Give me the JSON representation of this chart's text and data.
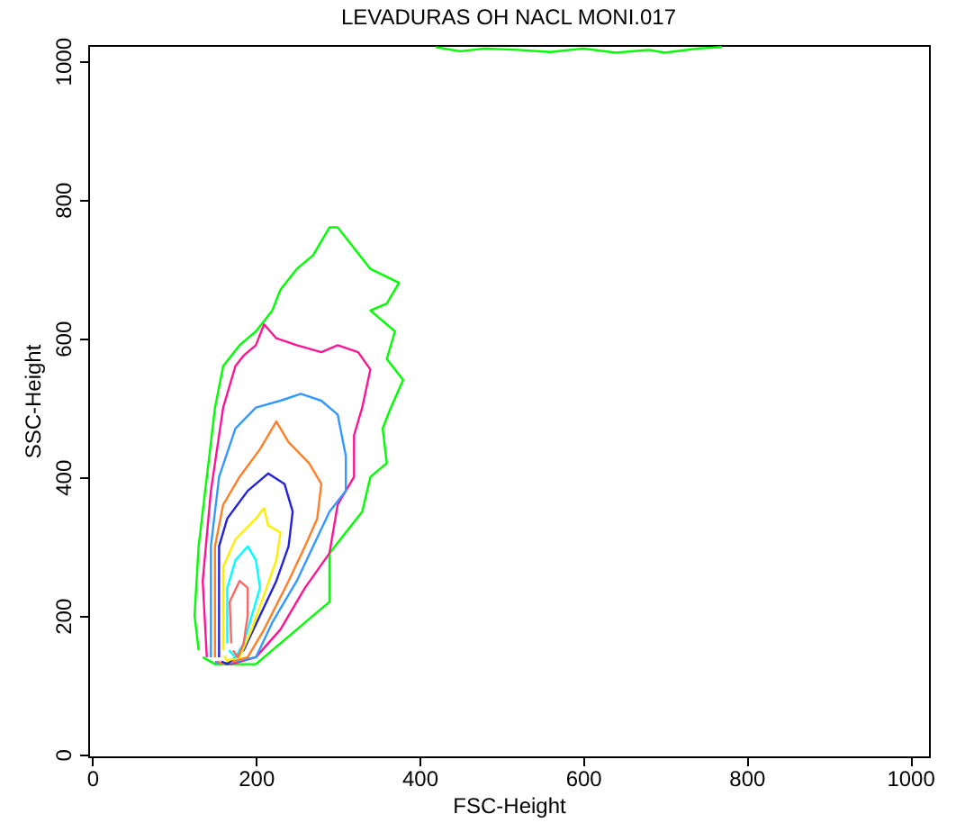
{
  "chart_data": {
    "type": "line",
    "title": "LEVADURAS OH NACL MONI.017",
    "xlabel": "FSC-Height",
    "ylabel": "SSC-Height",
    "xlim": [
      -5,
      1023
    ],
    "ylim": [
      -3,
      1023
    ],
    "xticks": [
      0,
      200,
      400,
      600,
      800,
      1000
    ],
    "yticks": [
      0,
      200,
      400,
      600,
      800,
      1000
    ],
    "grid": false,
    "legend": false,
    "marker": "none",
    "line_style": "solid",
    "series": [
      {
        "color": "#00ff00",
        "x": [
          130,
          125,
          130,
          140,
          150,
          160,
          180,
          200,
          220,
          230,
          250,
          270,
          290,
          300,
          340,
          375,
          360,
          340,
          370,
          360,
          380,
          365,
          355,
          360,
          340,
          330,
          310,
          290,
          290,
          270,
          250,
          220,
          200,
          150,
          135
        ],
        "values": [
          150,
          200,
          300,
          400,
          500,
          560,
          590,
          610,
          640,
          670,
          700,
          720,
          760,
          760,
          700,
          680,
          650,
          640,
          610,
          570,
          540,
          500,
          470,
          420,
          400,
          350,
          320,
          290,
          220,
          200,
          180,
          150,
          130,
          130,
          140
        ]
      },
      {
        "color": "#00ff00",
        "x": [
          420,
          450,
          480,
          520,
          560,
          600,
          640,
          680,
          700,
          740,
          770
        ],
        "values": [
          1020,
          1014,
          1018,
          1016,
          1013,
          1018,
          1012,
          1016,
          1012,
          1018,
          1020
        ]
      },
      {
        "color": "#ff1493",
        "x": [
          140,
          135,
          145,
          160,
          175,
          185,
          200,
          210,
          225,
          250,
          280,
          300,
          325,
          340,
          330,
          320,
          320,
          300,
          290,
          260,
          230,
          200,
          170,
          150
        ],
        "values": [
          140,
          250,
          380,
          500,
          560,
          575,
          590,
          620,
          600,
          590,
          580,
          590,
          580,
          555,
          500,
          460,
          400,
          360,
          290,
          240,
          180,
          140,
          130,
          133
        ]
      },
      {
        "color": "#3399ff",
        "x": [
          145,
          145,
          155,
          175,
          200,
          230,
          255,
          280,
          300,
          310,
          310,
          290,
          270,
          250,
          220,
          200,
          160,
          150
        ],
        "values": [
          140,
          300,
          400,
          470,
          500,
          510,
          520,
          510,
          490,
          430,
          380,
          350,
          300,
          250,
          190,
          140,
          130,
          133
        ]
      },
      {
        "color": "#ff7f27",
        "x": [
          150,
          150,
          160,
          180,
          205,
          225,
          240,
          265,
          280,
          275,
          260,
          240,
          210,
          190,
          160,
          153
        ],
        "values": [
          140,
          300,
          360,
          400,
          440,
          480,
          450,
          420,
          390,
          340,
          300,
          250,
          180,
          140,
          130,
          134
        ]
      },
      {
        "color": "#2222dd",
        "x": [
          155,
          155,
          165,
          190,
          215,
          235,
          245,
          240,
          225,
          205,
          185,
          165,
          158
        ],
        "values": [
          140,
          300,
          340,
          380,
          405,
          390,
          350,
          300,
          250,
          200,
          150,
          130,
          134
        ]
      },
      {
        "color": "#ffee00",
        "x": [
          160,
          160,
          175,
          200,
          210,
          215,
          230,
          225,
          210,
          195,
          180,
          165,
          161
        ],
        "values": [
          150,
          270,
          310,
          340,
          355,
          330,
          320,
          280,
          230,
          180,
          140,
          135,
          142
        ]
      },
      {
        "color": "#00ffff",
        "x": [
          165,
          165,
          175,
          190,
          200,
          205,
          195,
          185,
          175,
          167
        ],
        "values": [
          160,
          240,
          280,
          300,
          280,
          240,
          200,
          160,
          140,
          150
        ]
      },
      {
        "color": "#ff6666",
        "x": [
          170,
          168,
          180,
          190,
          190,
          185,
          178,
          172
        ],
        "values": [
          160,
          220,
          250,
          240,
          200,
          160,
          140,
          150
        ]
      }
    ]
  }
}
